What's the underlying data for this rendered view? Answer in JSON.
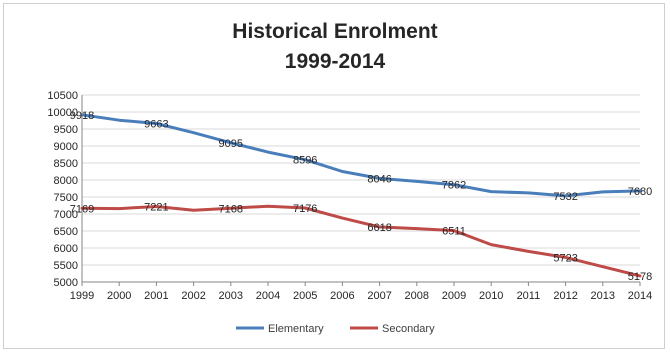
{
  "chart_data": {
    "type": "line",
    "title": [
      "Historical Enrolment",
      "1999-2014"
    ],
    "xlabel": "",
    "ylabel": "",
    "x": [
      "1999",
      "2000",
      "2001",
      "2002",
      "2003",
      "2004",
      "2005",
      "2006",
      "2007",
      "2008",
      "2009",
      "2010",
      "2011",
      "2012",
      "2013",
      "2014"
    ],
    "ylim": [
      5000,
      10500
    ],
    "yticks": [
      5000,
      5500,
      6000,
      6500,
      7000,
      7500,
      8000,
      8500,
      9000,
      9500,
      10000,
      10500
    ],
    "grid": "horizontal",
    "legend": "bottom",
    "series": [
      {
        "name": "Elementary",
        "color": "#4a7ebb",
        "values": [
          9918,
          9760,
          9663,
          9390,
          9095,
          8820,
          8596,
          8250,
          8046,
          7960,
          7862,
          7660,
          7620,
          7532,
          7650,
          7680
        ],
        "labels": [
          {
            "index": 0,
            "text": "9918"
          },
          {
            "index": 2,
            "text": "9663"
          },
          {
            "index": 4,
            "text": "9095"
          },
          {
            "index": 6,
            "text": "8596"
          },
          {
            "index": 8,
            "text": "8046"
          },
          {
            "index": 10,
            "text": "7862"
          },
          {
            "index": 13,
            "text": "7532"
          },
          {
            "index": 15,
            "text": "7680"
          }
        ]
      },
      {
        "name": "Secondary",
        "color": "#be4b48",
        "values": [
          7169,
          7160,
          7221,
          7110,
          7168,
          7230,
          7176,
          6880,
          6618,
          6570,
          6511,
          6100,
          5900,
          5723,
          5450,
          5178
        ],
        "labels": [
          {
            "index": 0,
            "text": "7169"
          },
          {
            "index": 2,
            "text": "7221"
          },
          {
            "index": 4,
            "text": "7168"
          },
          {
            "index": 6,
            "text": "7176"
          },
          {
            "index": 8,
            "text": "6618"
          },
          {
            "index": 10,
            "text": "6511"
          },
          {
            "index": 13,
            "text": "5723"
          },
          {
            "index": 15,
            "text": "5178"
          }
        ]
      }
    ]
  }
}
